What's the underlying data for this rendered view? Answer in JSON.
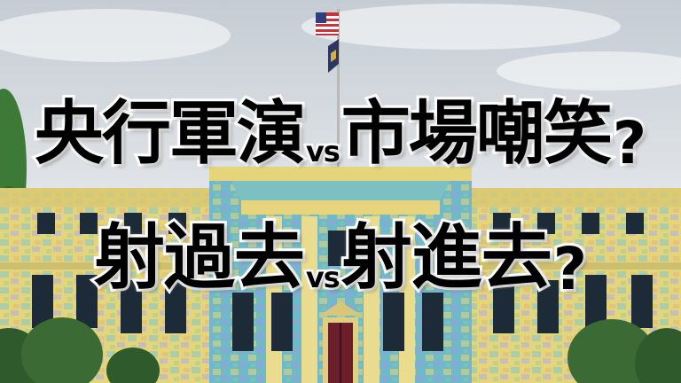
{
  "headline": {
    "line1": {
      "left": "央行軍演",
      "vs": "vs",
      "right": "市場嘲笑",
      "mark": "?"
    },
    "line2": {
      "left": "射過去",
      "vs": "vs",
      "right": "射進去",
      "mark": "?"
    }
  },
  "scene": {
    "subject": "government-building-with-flagpole",
    "colors": {
      "sky": "#d9dee3",
      "facade": "#e3d27a",
      "accent": "#4fb3c9",
      "door": "#6b1f2a",
      "trees": "#2f5a2c"
    }
  }
}
